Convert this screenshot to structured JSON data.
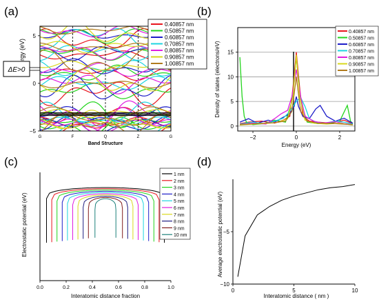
{
  "chart_data": [
    {
      "type": "line",
      "panel_label": "(a)",
      "xlabel": "Band Structure",
      "ylabel": "Energy (eV)",
      "x_ticks": [
        "G",
        "F",
        "Q",
        "Z",
        "G"
      ],
      "y_ticks": [
        -5,
        0,
        5
      ],
      "ylim": [
        -5,
        6
      ],
      "annotation": "ΔE>0",
      "legend_position": "top-right",
      "series": [
        {
          "name": "0.40857 nm",
          "color": "#e8141c"
        },
        {
          "name": "0.50857 nm",
          "color": "#22d41c"
        },
        {
          "name": "0.60857 nm",
          "color": "#1c1cc8"
        },
        {
          "name": "0.70857 nm",
          "color": "#1cd4e0"
        },
        {
          "name": "0.80857 nm",
          "color": "#e01ce0"
        },
        {
          "name": "0.90857 nm",
          "color": "#d8d81c"
        },
        {
          "name": "1.00857 nm",
          "color": "#b07a1c"
        }
      ]
    },
    {
      "type": "line",
      "panel_label": "(b)",
      "xlabel": "Energy (eV)",
      "ylabel": "Density of states (electrons/eV)",
      "x_ticks": [
        -2,
        0,
        2
      ],
      "y_ticks": [
        0,
        5,
        10,
        15
      ],
      "xlim": [
        -2.7,
        2.7
      ],
      "ylim": [
        -1,
        20
      ],
      "grid": "horizontal",
      "legend_position": "top-right",
      "series": [
        {
          "name": "0.40857 nm",
          "color": "#e8141c",
          "x": [
            -2.6,
            -2.2,
            -1.6,
            -1.0,
            -0.6,
            -0.3,
            -0.15,
            0.0,
            0.15,
            0.3,
            0.6,
            1.0,
            1.6,
            2.2,
            2.6
          ],
          "y": [
            0.5,
            0.8,
            1.0,
            0.6,
            1.2,
            2.0,
            8.0,
            15.0,
            8.0,
            2.0,
            1.0,
            0.8,
            0.6,
            1.2,
            0.5
          ]
        },
        {
          "name": "0.50857 nm",
          "color": "#22d41c",
          "x": [
            -2.6,
            -2.5,
            -2.4,
            -2.3,
            -2.0,
            -1.5,
            -1.0,
            -0.5,
            -0.2,
            0.0,
            0.2,
            0.5,
            1.0,
            1.5,
            2.0,
            2.35,
            2.5,
            2.6
          ],
          "y": [
            14.0,
            6.0,
            2.0,
            0.8,
            0.3,
            0.5,
            1.2,
            0.8,
            5.0,
            14.0,
            5.0,
            0.8,
            0.5,
            0.6,
            1.0,
            4.2,
            1.0,
            0.5
          ]
        },
        {
          "name": "0.60857 nm",
          "color": "#1c1cc8",
          "x": [
            -2.6,
            -2.2,
            -1.8,
            -1.3,
            -1.0,
            -0.6,
            -0.3,
            -0.1,
            0.0,
            0.1,
            0.3,
            0.6,
            0.9,
            1.1,
            1.4,
            1.8,
            2.2,
            2.6
          ],
          "y": [
            0.8,
            1.5,
            0.6,
            1.2,
            0.8,
            1.8,
            2.5,
            4.0,
            6.0,
            4.0,
            2.0,
            1.5,
            3.5,
            4.2,
            2.0,
            1.0,
            1.6,
            0.6
          ]
        },
        {
          "name": "0.70857 nm",
          "color": "#1cd4e0",
          "x": [
            -2.6,
            -2.0,
            -1.5,
            -1.0,
            -0.6,
            -0.3,
            0.0,
            0.2,
            0.4,
            0.6,
            0.9,
            1.3,
            1.8,
            2.2,
            2.6
          ],
          "y": [
            0.4,
            0.8,
            0.5,
            1.0,
            1.6,
            3.0,
            5.0,
            5.8,
            4.0,
            1.5,
            0.8,
            0.6,
            1.0,
            0.8,
            0.4
          ]
        },
        {
          "name": "0.80857 nm",
          "color": "#e01ce0",
          "x": [
            -2.6,
            -2.0,
            -1.4,
            -1.0,
            -0.7,
            -0.4,
            -0.2,
            0.0,
            0.2,
            0.4,
            0.8,
            1.2,
            1.8,
            2.2,
            2.6
          ],
          "y": [
            0.3,
            0.6,
            0.4,
            1.5,
            2.5,
            3.2,
            6.0,
            11.5,
            6.0,
            2.0,
            1.0,
            0.6,
            0.9,
            0.5,
            0.3
          ]
        },
        {
          "name": "0.90857 nm",
          "color": "#d8d81c",
          "x": [
            -2.6,
            -2.0,
            -1.2,
            -0.8,
            -0.4,
            -0.15,
            0.0,
            0.15,
            0.4,
            0.8,
            1.4,
            2.0,
            2.6
          ],
          "y": [
            0.2,
            0.4,
            0.6,
            0.8,
            1.5,
            6.0,
            14.5,
            6.0,
            1.2,
            0.6,
            0.4,
            0.6,
            0.2
          ]
        },
        {
          "name": "1.00857 nm",
          "color": "#b07a1c",
          "x": [
            -2.6,
            -1.8,
            -1.0,
            -0.5,
            -0.2,
            0.0,
            0.2,
            0.5,
            1.0,
            1.8,
            2.6
          ],
          "y": [
            0.3,
            0.5,
            0.7,
            1.0,
            3.0,
            10.0,
            3.0,
            1.0,
            0.6,
            0.5,
            0.3
          ]
        }
      ]
    },
    {
      "type": "line",
      "panel_label": "(c)",
      "xlabel": "Interatomic distance fraction",
      "ylabel": "Electrostatic potential (eV)",
      "x_ticks": [
        0.0,
        0.2,
        0.4,
        0.6,
        0.8,
        1.0
      ],
      "xlim": [
        0.0,
        1.0
      ],
      "legend_position": "top-right",
      "series": [
        {
          "name": "1 nm",
          "color": "#000000",
          "x_range": [
            0.05,
            0.95
          ]
        },
        {
          "name": "2 nm",
          "color": "#e8141c",
          "x_range": [
            0.09,
            0.91
          ]
        },
        {
          "name": "3 nm",
          "color": "#22d41c",
          "x_range": [
            0.13,
            0.87
          ]
        },
        {
          "name": "4 nm",
          "color": "#1c1cc8",
          "x_range": [
            0.17,
            0.83
          ]
        },
        {
          "name": "5 nm",
          "color": "#1cd4e0",
          "x_range": [
            0.21,
            0.79
          ]
        },
        {
          "name": "6 nm",
          "color": "#e01ce0",
          "x_range": [
            0.25,
            0.75
          ]
        },
        {
          "name": "7 nm",
          "color": "#d8d81c",
          "x_range": [
            0.29,
            0.71
          ]
        },
        {
          "name": "8 nm",
          "color": "#1c1c80",
          "x_range": [
            0.33,
            0.67
          ]
        },
        {
          "name": "9 nm",
          "color": "#801c1c",
          "x_range": [
            0.37,
            0.63
          ]
        },
        {
          "name": "10 nm",
          "color": "#1c807a",
          "x_range": [
            0.42,
            0.58
          ]
        }
      ]
    },
    {
      "type": "line",
      "panel_label": "(d)",
      "xlabel": "Interatomic distance ( nm )",
      "ylabel": "Average electrostatic potential (eV)",
      "x_ticks": [
        0,
        5,
        10
      ],
      "y_ticks": [
        -10,
        -5
      ],
      "xlim": [
        0,
        10
      ],
      "ylim": [
        -10,
        0
      ],
      "x": [
        0.4,
        1,
        2,
        3,
        4,
        5,
        6,
        7,
        8,
        9,
        10
      ],
      "y": [
        -9.3,
        -5.4,
        -3.4,
        -2.6,
        -2.0,
        -1.6,
        -1.3,
        -1.0,
        -0.8,
        -0.7,
        -0.5
      ]
    }
  ]
}
